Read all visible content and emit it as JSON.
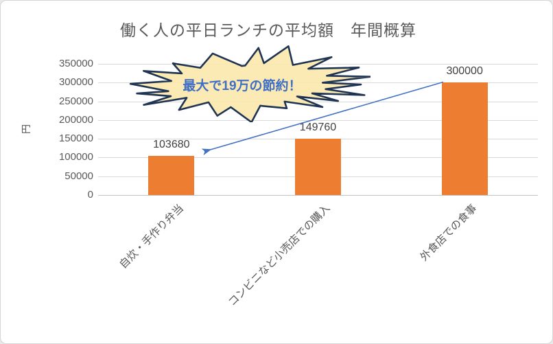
{
  "chart_data": {
    "type": "bar",
    "title": "働く人の平日ランチの平均額　年間概算",
    "ylabel": "円",
    "categories": [
      "自炊・手作り弁当",
      "コンビニなど小売店での購入",
      "外食店での食事"
    ],
    "values": [
      103680,
      149760,
      300000
    ],
    "data_labels": [
      "103680",
      "149760",
      "300000"
    ],
    "ylim": [
      0,
      350000
    ],
    "ytick_step": 50000,
    "yticks": [
      "0",
      "50000",
      "100000",
      "150000",
      "200000",
      "250000",
      "300000",
      "350000"
    ],
    "grid": true,
    "legend": "none",
    "colors": {
      "bar": "#ED7D31",
      "title_text": "#595959",
      "axis_text": "#595959",
      "data_label_text": "#404040",
      "gridline": "#D9D9D9",
      "arrow": "#4472C4",
      "callout_fill": "#FBE8AC",
      "callout_border": "#1F3352",
      "callout_text": "#3F6EC6"
    },
    "annotation": {
      "callout_text": "最大で19万の節約！",
      "callout_shape": "explosion-starburst",
      "arrow_from_category": "外食店での食事",
      "arrow_to_category": "自炊・手作り弁当"
    }
  }
}
